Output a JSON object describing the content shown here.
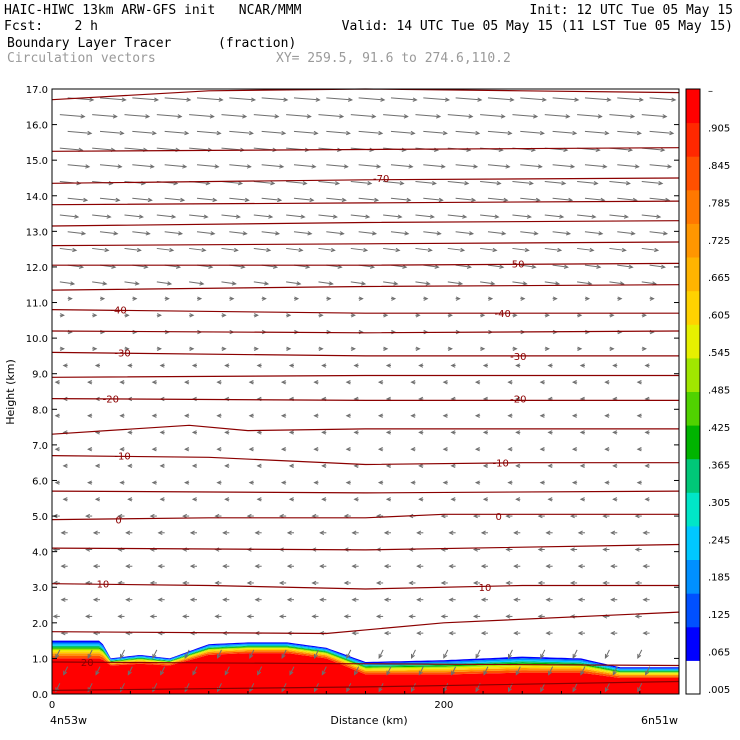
{
  "header": {
    "model_line": "HAIC-HIWC 13km ARW-GFS init   NCAR/MMM",
    "init_line": "Init: 12 UTC Tue 05 May 15",
    "fcst_line": "Fcst:    2 h",
    "valid_line": "Valid: 14 UTC Tue 05 May 15 (11 LST Tue 05 May 15)",
    "field_name": "Boundary Layer Tracer",
    "field_units": "(fraction)",
    "vector_name": "Circulation vectors",
    "xy_line": "XY= 259.5, 91.6 to 274.6,110.2"
  },
  "colors": {
    "contour": "#8b0000",
    "vector": "#6e6e6e",
    "gray_text": "#9a9a9a"
  },
  "colorbar": {
    "labels": [
      "–",
      ".905",
      ".845",
      ".785",
      ".725",
      ".665",
      ".605",
      ".545",
      ".485",
      ".425",
      ".365",
      ".305",
      ".245",
      ".185",
      ".125",
      ".065",
      ".005"
    ],
    "colors": [
      "#ffffff",
      "#0000ff",
      "#0050ff",
      "#0090ff",
      "#00c8ff",
      "#00e6c8",
      "#00c878",
      "#00b400",
      "#50d200",
      "#a0e600",
      "#e6f000",
      "#ffd200",
      "#ffb400",
      "#ff9600",
      "#ff7800",
      "#ff5000",
      "#ff2800",
      "#ff0000"
    ]
  },
  "chart_data": {
    "type": "heatmap",
    "title": "Boundary Layer Tracer",
    "units": "(fraction)",
    "xlabel": "Distance (km)",
    "ylabel": "Height (km)",
    "xlim": [
      0,
      320
    ],
    "ylim": [
      0,
      17
    ],
    "y_ticks": [
      "0.0",
      "1.0",
      "2.0",
      "3.0",
      "4.0",
      "5.0",
      "6.0",
      "7.0",
      "8.0",
      "9.0",
      "10.0",
      "11.0",
      "12.0",
      "13.0",
      "14.0",
      "15.0",
      "16.0",
      "17.0"
    ],
    "x_ticks": [
      "0",
      "200"
    ],
    "x_tick_values": [
      0,
      200
    ],
    "left_endpoint": "4n53w",
    "right_endpoint": "6n51w",
    "contour_labels": [
      {
        "x": 168,
        "y": 14.5,
        "label": "-70"
      },
      {
        "x": 237,
        "y": 12.1,
        "label": "-50"
      },
      {
        "x": 34,
        "y": 10.8,
        "label": "-40"
      },
      {
        "x": 230,
        "y": 10.7,
        "label": "-40"
      },
      {
        "x": 36,
        "y": 9.6,
        "label": "-30"
      },
      {
        "x": 238,
        "y": 9.5,
        "label": "-30"
      },
      {
        "x": 30,
        "y": 8.3,
        "label": "-20"
      },
      {
        "x": 238,
        "y": 8.3,
        "label": "-20"
      },
      {
        "x": 36,
        "y": 6.7,
        "label": "-10"
      },
      {
        "x": 229,
        "y": 6.5,
        "label": "-10"
      },
      {
        "x": 34,
        "y": 4.9,
        "label": "0"
      },
      {
        "x": 228,
        "y": 5.0,
        "label": "0"
      },
      {
        "x": 26,
        "y": 3.1,
        "label": "10"
      },
      {
        "x": 221,
        "y": 3.0,
        "label": "10"
      },
      {
        "x": 18,
        "y": 0.9,
        "label": "20"
      }
    ],
    "contour_lines": [
      {
        "x": [
          0,
          80,
          160,
          240,
          320
        ],
        "y": [
          16.7,
          16.95,
          17.0,
          16.95,
          16.9
        ]
      },
      {
        "x": [
          0,
          160,
          320
        ],
        "y": [
          15.25,
          15.3,
          15.35
        ]
      },
      {
        "x": [
          0,
          160,
          320
        ],
        "y": [
          14.35,
          14.45,
          14.5
        ]
      },
      {
        "x": [
          0,
          160,
          320
        ],
        "y": [
          13.75,
          13.8,
          13.85
        ]
      },
      {
        "x": [
          0,
          160,
          320
        ],
        "y": [
          13.15,
          13.25,
          13.3
        ]
      },
      {
        "x": [
          0,
          160,
          320
        ],
        "y": [
          12.6,
          12.65,
          12.7
        ]
      },
      {
        "x": [
          0,
          160,
          320
        ],
        "y": [
          12.05,
          12.05,
          12.1
        ]
      },
      {
        "x": [
          0,
          160,
          320
        ],
        "y": [
          11.35,
          11.45,
          11.5
        ]
      },
      {
        "x": [
          0,
          160,
          320
        ],
        "y": [
          10.8,
          10.7,
          10.7
        ]
      },
      {
        "x": [
          0,
          160,
          320
        ],
        "y": [
          10.2,
          10.15,
          10.2
        ]
      },
      {
        "x": [
          0,
          160,
          320
        ],
        "y": [
          9.6,
          9.5,
          9.5
        ]
      },
      {
        "x": [
          0,
          160,
          320
        ],
        "y": [
          8.9,
          8.95,
          8.95
        ]
      },
      {
        "x": [
          0,
          160,
          320
        ],
        "y": [
          8.3,
          8.25,
          8.25
        ]
      },
      {
        "x": [
          0,
          70,
          100,
          160,
          320
        ],
        "y": [
          7.3,
          7.55,
          7.4,
          7.45,
          7.45
        ]
      },
      {
        "x": [
          0,
          80,
          160,
          240,
          320
        ],
        "y": [
          6.7,
          6.65,
          6.45,
          6.5,
          6.5
        ]
      },
      {
        "x": [
          0,
          160,
          320
        ],
        "y": [
          5.7,
          5.65,
          5.7
        ]
      },
      {
        "x": [
          0,
          80,
          160,
          200,
          260,
          320
        ],
        "y": [
          4.9,
          4.95,
          4.95,
          5.05,
          5.05,
          5.05
        ]
      },
      {
        "x": [
          0,
          160,
          320
        ],
        "y": [
          4.1,
          4.05,
          4.2
        ]
      },
      {
        "x": [
          0,
          80,
          160,
          240,
          320
        ],
        "y": [
          3.1,
          3.05,
          2.95,
          3.05,
          3.05
        ]
      },
      {
        "x": [
          0,
          140,
          200,
          320
        ],
        "y": [
          1.75,
          1.7,
          2.0,
          2.3
        ]
      },
      {
        "x": [
          0,
          160,
          320
        ],
        "y": [
          0.9,
          0.85,
          0.8
        ]
      },
      {
        "x": [
          0,
          160,
          320
        ],
        "y": [
          0.1,
          0.2,
          0.35
        ]
      }
    ],
    "tracer_layer": {
      "x": [
        0,
        25,
        30,
        45,
        60,
        80,
        100,
        120,
        140,
        160,
        200,
        240,
        270,
        290,
        320
      ],
      "top": [
        1.5,
        1.5,
        1.0,
        1.1,
        1.0,
        1.4,
        1.45,
        1.45,
        1.3,
        0.9,
        0.95,
        1.05,
        1.0,
        0.75,
        0.75
      ],
      "red_top": [
        1.0,
        1.0,
        0.8,
        0.85,
        0.8,
        1.1,
        1.15,
        1.15,
        1.0,
        0.55,
        0.55,
        0.6,
        0.6,
        0.45,
        0.45
      ]
    }
  }
}
